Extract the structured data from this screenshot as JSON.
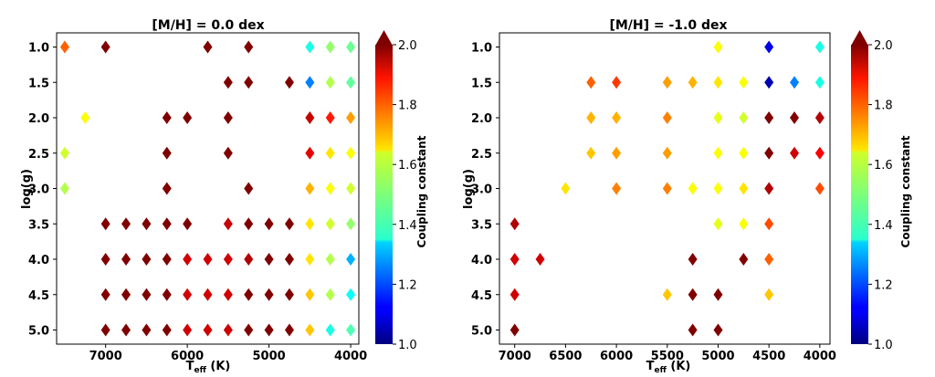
{
  "chart_data": [
    {
      "type": "scatter",
      "title": "[M/H] = 0.0 dex",
      "xlabel_main": "T",
      "xlabel_sub": "eff",
      "xlabel_unit": " (K)",
      "ylabel": "log(g)",
      "xlim": [
        7600,
        3900
      ],
      "ylim": [
        5.2,
        0.8
      ],
      "xticks": [
        7000,
        6000,
        5000,
        4000
      ],
      "yticks": [
        "1.0",
        "1.5",
        "2.0",
        "2.5",
        "3.0",
        "3.5",
        "4.0",
        "4.5",
        "5.0"
      ],
      "colorbar_label": "Coupling constant",
      "clim": [
        1.0,
        2.0
      ],
      "cbticks": [
        "1.0",
        "1.2",
        "1.4",
        "1.6",
        "1.8",
        "2.0"
      ],
      "points": [
        [
          7500,
          1.0,
          1.78
        ],
        [
          7000,
          1.0,
          2.0
        ],
        [
          5750,
          1.0,
          2.0
        ],
        [
          5250,
          1.0,
          2.0
        ],
        [
          4500,
          1.0,
          1.4
        ],
        [
          4250,
          1.0,
          1.52
        ],
        [
          4000,
          1.0,
          1.48
        ],
        [
          5500,
          1.5,
          2.0
        ],
        [
          5250,
          1.5,
          2.0
        ],
        [
          4750,
          1.5,
          2.0
        ],
        [
          4500,
          1.5,
          1.25
        ],
        [
          4250,
          1.5,
          1.55
        ],
        [
          4000,
          1.5,
          1.47
        ],
        [
          7250,
          2.0,
          1.62
        ],
        [
          6250,
          2.0,
          2.0
        ],
        [
          6000,
          2.0,
          2.0
        ],
        [
          5500,
          2.0,
          2.0
        ],
        [
          4500,
          2.0,
          1.93
        ],
        [
          4250,
          2.0,
          1.85
        ],
        [
          4000,
          2.0,
          1.72
        ],
        [
          7500,
          2.5,
          1.58
        ],
        [
          6250,
          2.5,
          2.0
        ],
        [
          5500,
          2.5,
          2.0
        ],
        [
          4500,
          2.5,
          1.9
        ],
        [
          4250,
          2.5,
          1.65
        ],
        [
          4000,
          2.5,
          1.62
        ],
        [
          7500,
          3.0,
          1.55
        ],
        [
          6250,
          3.0,
          2.0
        ],
        [
          5250,
          3.0,
          2.0
        ],
        [
          4500,
          3.0,
          1.7
        ],
        [
          4250,
          3.0,
          1.62
        ],
        [
          4000,
          3.0,
          1.58
        ],
        [
          7000,
          3.5,
          2.0
        ],
        [
          6750,
          3.5,
          2.0
        ],
        [
          6500,
          3.5,
          2.0
        ],
        [
          6250,
          3.5,
          2.0
        ],
        [
          6000,
          3.5,
          2.0
        ],
        [
          5500,
          3.5,
          1.93
        ],
        [
          5250,
          3.5,
          2.0
        ],
        [
          5000,
          3.5,
          2.0
        ],
        [
          4750,
          3.5,
          2.0
        ],
        [
          4500,
          3.5,
          1.65
        ],
        [
          4250,
          3.5,
          1.58
        ],
        [
          4000,
          3.5,
          1.52
        ],
        [
          7000,
          4.0,
          2.0
        ],
        [
          6750,
          4.0,
          2.0
        ],
        [
          6500,
          4.0,
          2.0
        ],
        [
          6250,
          4.0,
          2.0
        ],
        [
          6000,
          4.0,
          1.92
        ],
        [
          5750,
          4.0,
          1.92
        ],
        [
          5500,
          4.0,
          1.92
        ],
        [
          5250,
          4.0,
          1.95
        ],
        [
          5000,
          4.0,
          2.0
        ],
        [
          4750,
          4.0,
          2.0
        ],
        [
          4500,
          4.0,
          1.65
        ],
        [
          4250,
          4.0,
          1.55
        ],
        [
          4000,
          4.0,
          1.3
        ],
        [
          7000,
          4.5,
          2.0
        ],
        [
          6750,
          4.5,
          2.0
        ],
        [
          6500,
          4.5,
          2.0
        ],
        [
          6250,
          4.5,
          2.0
        ],
        [
          6000,
          4.5,
          1.92
        ],
        [
          5750,
          4.5,
          1.92
        ],
        [
          5500,
          4.5,
          1.92
        ],
        [
          5250,
          4.5,
          2.0
        ],
        [
          5000,
          4.5,
          2.0
        ],
        [
          4750,
          4.5,
          2.0
        ],
        [
          4500,
          4.5,
          1.68
        ],
        [
          4250,
          4.5,
          1.55
        ],
        [
          4000,
          4.5,
          1.38
        ],
        [
          7000,
          5.0,
          2.0
        ],
        [
          6750,
          5.0,
          2.0
        ],
        [
          6500,
          5.0,
          2.0
        ],
        [
          6250,
          5.0,
          2.0
        ],
        [
          6000,
          5.0,
          1.92
        ],
        [
          5750,
          5.0,
          1.92
        ],
        [
          5500,
          5.0,
          1.92
        ],
        [
          5250,
          5.0,
          2.0
        ],
        [
          5000,
          5.0,
          2.0
        ],
        [
          4750,
          5.0,
          2.0
        ],
        [
          4500,
          5.0,
          1.68
        ],
        [
          4250,
          5.0,
          1.4
        ],
        [
          4000,
          5.0,
          1.45
        ]
      ]
    },
    {
      "type": "scatter",
      "title": "[M/H] = -1.0 dex",
      "xlabel_main": "T",
      "xlabel_sub": "eff",
      "xlabel_unit": " (K)",
      "ylabel": "log(g)",
      "xlim": [
        7150,
        3900
      ],
      "ylim": [
        5.2,
        0.8
      ],
      "xticks": [
        7000,
        6500,
        6000,
        5500,
        5000,
        4500,
        4000
      ],
      "yticks": [
        "1.0",
        "1.5",
        "2.0",
        "2.5",
        "3.0",
        "3.5",
        "4.0",
        "4.5",
        "5.0"
      ],
      "colorbar_label": "Coupling constant",
      "clim": [
        1.0,
        2.0
      ],
      "cbticks": [
        "1.0",
        "1.2",
        "1.4",
        "1.6",
        "1.8",
        "2.0"
      ],
      "points": [
        [
          5000,
          1.0,
          1.62
        ],
        [
          4500,
          1.0,
          1.1
        ],
        [
          4000,
          1.0,
          1.4
        ],
        [
          6250,
          1.5,
          1.78
        ],
        [
          6000,
          1.5,
          1.82
        ],
        [
          5500,
          1.5,
          1.72
        ],
        [
          5250,
          1.5,
          1.7
        ],
        [
          5000,
          1.5,
          1.65
        ],
        [
          4750,
          1.5,
          1.62
        ],
        [
          4500,
          1.5,
          1.05
        ],
        [
          4250,
          1.5,
          1.25
        ],
        [
          4000,
          1.5,
          1.4
        ],
        [
          6250,
          2.0,
          1.7
        ],
        [
          6000,
          2.0,
          1.7
        ],
        [
          5500,
          2.0,
          1.75
        ],
        [
          5000,
          2.0,
          1.6
        ],
        [
          4750,
          2.0,
          1.58
        ],
        [
          4500,
          2.0,
          2.0
        ],
        [
          4250,
          2.0,
          2.0
        ],
        [
          4000,
          2.0,
          1.95
        ],
        [
          6250,
          2.5,
          1.68
        ],
        [
          6000,
          2.5,
          1.72
        ],
        [
          5500,
          2.5,
          1.72
        ],
        [
          5000,
          2.5,
          1.62
        ],
        [
          4750,
          2.5,
          1.62
        ],
        [
          4500,
          2.5,
          2.0
        ],
        [
          4250,
          2.5,
          1.92
        ],
        [
          4000,
          2.5,
          1.88
        ],
        [
          6500,
          3.0,
          1.65
        ],
        [
          6000,
          3.0,
          1.75
        ],
        [
          5500,
          3.0,
          1.75
        ],
        [
          5250,
          3.0,
          1.62
        ],
        [
          5000,
          3.0,
          1.62
        ],
        [
          4750,
          3.0,
          1.65
        ],
        [
          4500,
          3.0,
          1.95
        ],
        [
          4000,
          3.0,
          1.8
        ],
        [
          7000,
          3.5,
          1.95
        ],
        [
          5000,
          3.5,
          1.6
        ],
        [
          4750,
          3.5,
          1.62
        ],
        [
          4500,
          3.5,
          1.8
        ],
        [
          7000,
          4.0,
          1.92
        ],
        [
          6750,
          4.0,
          1.92
        ],
        [
          5250,
          4.0,
          2.0
        ],
        [
          4750,
          4.0,
          2.0
        ],
        [
          4500,
          4.0,
          1.78
        ],
        [
          7000,
          4.5,
          1.92
        ],
        [
          5500,
          4.5,
          1.68
        ],
        [
          5250,
          4.5,
          2.0
        ],
        [
          5000,
          4.5,
          2.0
        ],
        [
          4500,
          4.5,
          1.68
        ],
        [
          7000,
          5.0,
          2.0
        ],
        [
          5250,
          5.0,
          2.0
        ],
        [
          5000,
          5.0,
          2.0
        ]
      ]
    }
  ]
}
